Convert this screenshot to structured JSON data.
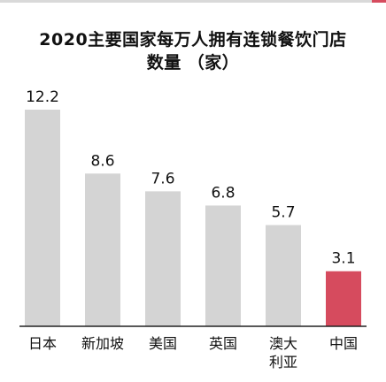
{
  "chart_data": {
    "type": "bar",
    "title": "2020主要国家每万人拥有连锁餐饮门店",
    "subtitle": "数量 （家）",
    "categories": [
      "日本",
      "新加坡",
      "美国",
      "英国",
      "澳大利亚",
      "中国"
    ],
    "category_lines": [
      [
        "日本"
      ],
      [
        "新加坡"
      ],
      [
        "美国"
      ],
      [
        "英国"
      ],
      [
        "澳大",
        "利亚"
      ],
      [
        "中国"
      ]
    ],
    "values": [
      12.2,
      8.6,
      7.6,
      6.8,
      5.7,
      3.1
    ],
    "value_labels": [
      "12.2",
      "8.6",
      "7.6",
      "6.8",
      "5.7",
      "3.1"
    ],
    "bar_colors": [
      "#d4d4d4",
      "#d4d4d4",
      "#d4d4d4",
      "#d4d4d4",
      "#d4d4d4",
      "#d64b5e"
    ],
    "grid": false,
    "legend": "none"
  }
}
